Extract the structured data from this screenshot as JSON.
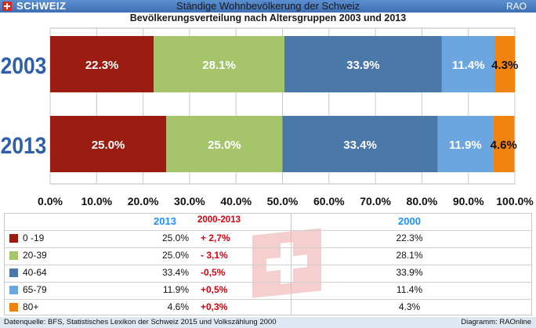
{
  "header": {
    "country": "SCHWEIZ",
    "title": "Ständige Wohnbevölkerung der Schweiz",
    "brand": "RAO"
  },
  "chart_data": {
    "type": "bar",
    "orientation": "horizontal",
    "stacked": true,
    "title": "Bevölkerungsverteilung nach Altersgruppen 2003 und 2013",
    "categories": [
      "2003",
      "2013"
    ],
    "series": [
      {
        "name": "0 -19",
        "color": "#9b1c11",
        "values": [
          22.3,
          25.0
        ],
        "labels": [
          "22.3%",
          "25.0%"
        ]
      },
      {
        "name": "20-39",
        "color": "#a6c46a",
        "values": [
          28.1,
          25.0
        ],
        "labels": [
          "28.1%",
          "25.0%"
        ]
      },
      {
        "name": "40-64",
        "color": "#4a78a8",
        "values": [
          33.9,
          33.4
        ],
        "labels": [
          "33.9%",
          "33.4%"
        ]
      },
      {
        "name": "65-79",
        "color": "#6ca6e0",
        "values": [
          11.4,
          11.9
        ],
        "labels": [
          "11.4%",
          "11.9%"
        ]
      },
      {
        "name": "80+",
        "color": "#f0820f",
        "values": [
          4.3,
          4.6
        ],
        "labels": [
          "4.3%",
          "4.6%"
        ]
      }
    ],
    "xlim": [
      0,
      100
    ],
    "xticks": [
      "0.0%",
      "10.0%",
      "20.0%",
      "30.0%",
      "40.0%",
      "50.0%",
      "60.0%",
      "70.0%",
      "80.0%",
      "90.0%",
      "100.0%"
    ],
    "grid": true
  },
  "table": {
    "col_2013": "2013",
    "col_delta": "2000-2013",
    "col_2000": "2000",
    "rows": [
      {
        "label": "0 -19",
        "color": "#9b1c11",
        "v2013": "25.0%",
        "delta": "+ 2,7%",
        "v2000": "22.3%"
      },
      {
        "label": "20-39",
        "color": "#a6c46a",
        "v2013": "25.0%",
        "delta": "- 3,1%",
        "v2000": "28.1%"
      },
      {
        "label": "40-64",
        "color": "#4a78a8",
        "v2013": "33.4%",
        "delta": "-0,5%",
        "v2000": "33.9%"
      },
      {
        "label": "65-79",
        "color": "#6ca6e0",
        "v2013": "11.9%",
        "delta": "+0,5%",
        "v2000": "11.4%"
      },
      {
        "label": "80+",
        "color": "#f0820f",
        "v2013": "4.6%",
        "delta": "+0,3%",
        "v2000": "4.3%"
      }
    ]
  },
  "footer": {
    "source": "Datenquelle: BFS, Statistisches Lexikon der Schweiz 2015 und Volkszählung 2000",
    "credit": "Diagramm: RAOnline"
  }
}
